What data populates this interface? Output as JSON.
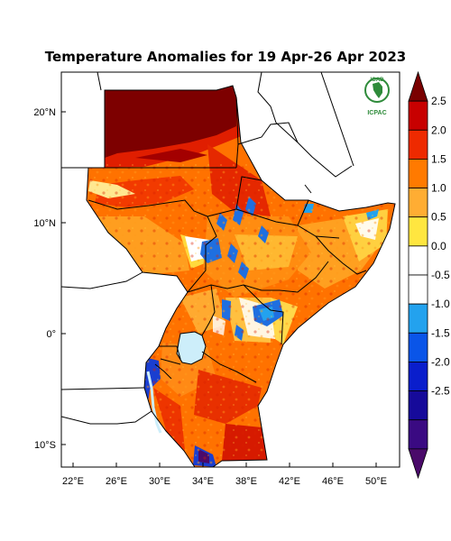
{
  "title": "Temperature Anomalies for 19 Apr-26 Apr 2023",
  "logo": {
    "top_text": "IGAD",
    "bottom_text": "ICPAC",
    "icon": "igad-africa-emblem-icon"
  },
  "axes": {
    "lat_ticks": [
      "20°N",
      "10°N",
      "0°",
      "10°S"
    ],
    "lon_ticks": [
      "22°E",
      "26°E",
      "30°E",
      "34°E",
      "38°E",
      "42°E",
      "46°E",
      "50°E"
    ]
  },
  "colorbar": {
    "labels": [
      "2.5",
      "2.0",
      "1.5",
      "1.0",
      "0.5",
      "0.0",
      "-0.5",
      "-1.0",
      "-1.5",
      "-2.0",
      "-2.5"
    ],
    "colors": [
      "#7a0000",
      "#c80000",
      "#ee2a00",
      "#ff7a00",
      "#ffad33",
      "#ffe640",
      "#ffffff",
      "#ffffff",
      "#23a2ee",
      "#0a55e8",
      "#0a1ecc",
      "#160a9a",
      "#3a0a82",
      "#4a0a6a"
    ]
  },
  "colors": {
    "low_blue": "#1f6fe0",
    "lake": "#cdeefa",
    "border": "#000000"
  }
}
